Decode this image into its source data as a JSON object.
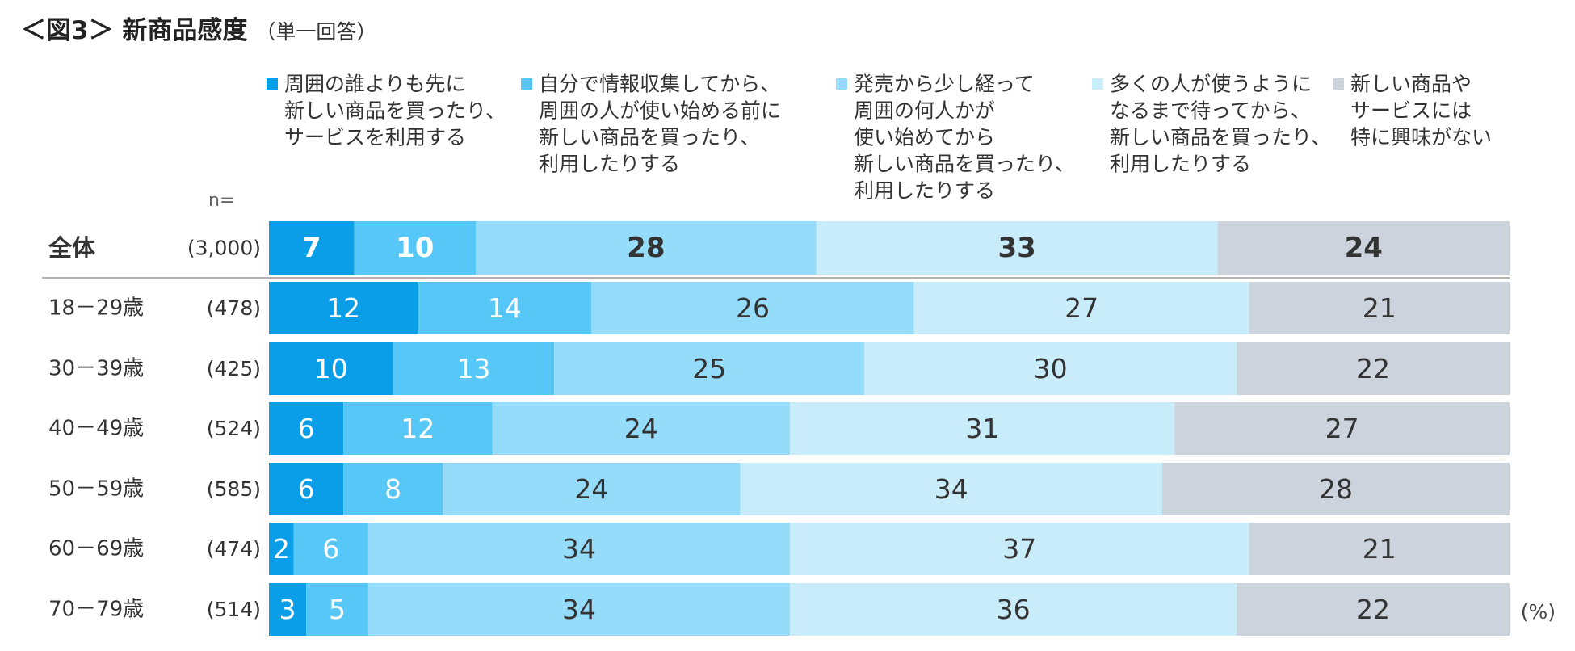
{
  "title": "＜図3＞ 新商品感度",
  "subtitle": "（単一回答）",
  "unit": "(%)",
  "chart_data": {
    "type": "bar",
    "orientation": "horizontal",
    "stacked": true,
    "n_label": "n=",
    "categories": [
      "全体",
      "18－29歳",
      "30－39歳",
      "40－49歳",
      "50－59歳",
      "60－69歳",
      "70－79歳"
    ],
    "n_values": [
      "(3,000)",
      "(478)",
      "(425)",
      "(524)",
      "(585)",
      "(474)",
      "(514)"
    ],
    "series": [
      {
        "name": [
          "周囲の誰よりも先に",
          "新しい商品を買ったり、",
          "サービスを利用する"
        ],
        "color": "#0a9ee8",
        "text_color": "#ffffff",
        "values": [
          7,
          12,
          10,
          6,
          6,
          2,
          3
        ]
      },
      {
        "name": [
          "自分で情報収集してから、",
          "周囲の人が使い始める前に",
          "新しい商品を買ったり、",
          "利用したりする"
        ],
        "color": "#56c7f7",
        "text_color": "#ffffff",
        "values": [
          10,
          14,
          13,
          12,
          8,
          6,
          5
        ]
      },
      {
        "name": [
          "発売から少し経って",
          "周囲の何人かが",
          "使い始めてから",
          "新しい商品を買ったり、",
          "利用したりする"
        ],
        "color": "#94dcf9",
        "text_color": "#333333",
        "values": [
          28,
          26,
          25,
          24,
          24,
          34,
          34
        ]
      },
      {
        "name": [
          "多くの人が使うように",
          "なるまで待ってから、",
          "新しい商品を買ったり、",
          "利用したりする"
        ],
        "color": "#c9ecfb",
        "text_color": "#333333",
        "values": [
          33,
          27,
          30,
          31,
          34,
          37,
          36
        ]
      },
      {
        "name": [
          "新しい商品や",
          "サービスには",
          "特に興味がない"
        ],
        "color": "#ccd3dc",
        "text_color": "#333333",
        "values": [
          24,
          21,
          22,
          27,
          28,
          21,
          22
        ]
      }
    ],
    "xlim": [
      0,
      100
    ],
    "legend_position": "top"
  }
}
